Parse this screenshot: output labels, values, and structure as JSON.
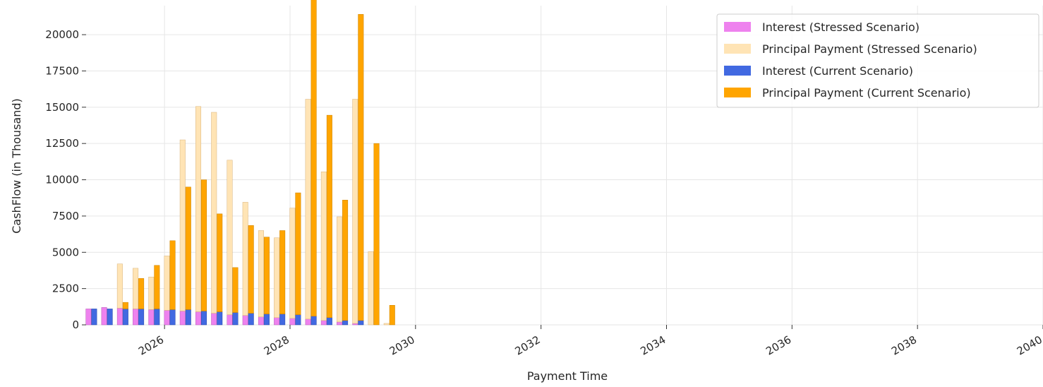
{
  "chart_data": {
    "type": "bar",
    "title": "",
    "xlabel": "Payment Time",
    "ylabel": "CashFlow (in Thousand)",
    "ylim": [
      0,
      22000
    ],
    "xlim": [
      "2024-10-01",
      "2040-01-01"
    ],
    "y_ticks": [
      0,
      2500,
      5000,
      7500,
      10000,
      12500,
      15000,
      17500,
      20000
    ],
    "x_ticks": [
      "2026",
      "2028",
      "2030",
      "2032",
      "2034",
      "2036",
      "2038",
      "2040"
    ],
    "grid": true,
    "stacked": true,
    "legend_position": "top-right",
    "categories": [
      "2024-11",
      "2025-02",
      "2025-05",
      "2025-08",
      "2025-11",
      "2026-02",
      "2026-05",
      "2026-08",
      "2026-11",
      "2027-02",
      "2027-05",
      "2027-08",
      "2027-11",
      "2028-02",
      "2028-05",
      "2028-08",
      "2028-11",
      "2029-02",
      "2029-05"
    ],
    "groups": [
      {
        "scenario": "Stressed",
        "series": [
          {
            "name": "Interest (Stressed Scenario)",
            "color": "#ee82ee",
            "values": [
              1100,
              1200,
              1150,
              1100,
              1050,
              1000,
              950,
              900,
              800,
              700,
              650,
              550,
              500,
              450,
              400,
              300,
              200,
              100,
              0
            ]
          },
          {
            "name": "Principal Payment (Stressed Scenario)",
            "color": "#ffe4b5",
            "values": [
              0,
              0,
              3050,
              2800,
              2250,
              3750,
              11800,
              14150,
              13850,
              10650,
              7800,
              5950,
              5500,
              7600,
              15150,
              10250,
              7250,
              15450,
              5050
            ]
          }
        ]
      },
      {
        "scenario": "Current",
        "series": [
          {
            "name": "Interest (Current Scenario)",
            "color": "#4169e1",
            "values": [
              1100,
              1100,
              1100,
              1100,
              1100,
              1050,
              1050,
              950,
              900,
              850,
              800,
              750,
              750,
              700,
              600,
              500,
              300,
              300,
              0
            ]
          },
          {
            "name": "Principal Payment (Current Scenario)",
            "color": "#ffa500",
            "values": [
              0,
              0,
              450,
              2100,
              3000,
              4750,
              8450,
              9050,
              6750,
              3100,
              6050,
              5300,
              5750,
              8400,
              21800,
              13950,
              8300,
              21100,
              12500
            ]
          }
        ]
      }
    ],
    "extra_bars": [
      {
        "x": "2029-08",
        "group": "Stressed",
        "interest": 0,
        "principal": 100
      },
      {
        "x": "2029-08",
        "group": "Current",
        "interest": 0,
        "principal": 1350
      }
    ]
  }
}
